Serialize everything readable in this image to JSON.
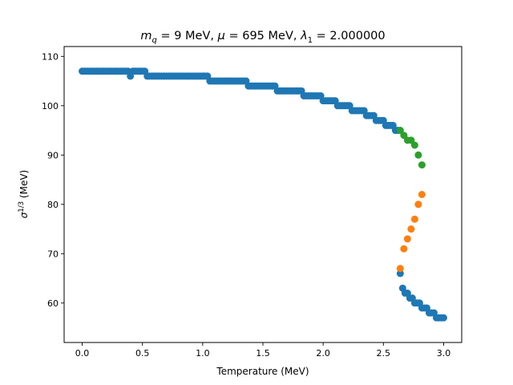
{
  "chart_data": {
    "type": "scatter",
    "title_parts": {
      "mq_symbol": "m",
      "mq_sub": "q",
      "mq_rest": " = 9 MeV, ",
      "mu_symbol": "μ",
      "mu_rest": " = 695 MeV, ",
      "lambda_symbol": "λ",
      "lambda_sub": "1",
      "lambda_rest": " =  2.000000"
    },
    "xlabel": "Temperature (MeV)",
    "ylabel_symbol": "σ",
    "ylabel_sup": "1/3",
    "ylabel_rest": " (MeV)",
    "xlim": [
      -0.15,
      3.15
    ],
    "ylim": [
      52,
      112
    ],
    "xticks": [
      0.0,
      0.5,
      1.0,
      1.5,
      2.0,
      2.5,
      3.0
    ],
    "xtick_labels": [
      "0.0",
      "0.5",
      "1.0",
      "1.5",
      "2.0",
      "2.5",
      "3.0"
    ],
    "yticks": [
      60,
      70,
      80,
      90,
      100,
      110
    ],
    "ytick_labels": [
      "60",
      "70",
      "80",
      "90",
      "100",
      "110"
    ],
    "grid": false,
    "legend": "none",
    "series": [
      {
        "color": "#1f77b4",
        "points": [
          [
            0.0,
            107
          ],
          [
            0.02,
            107
          ],
          [
            0.04,
            107
          ],
          [
            0.06,
            107
          ],
          [
            0.08,
            107
          ],
          [
            0.1,
            107
          ],
          [
            0.12,
            107
          ],
          [
            0.14,
            107
          ],
          [
            0.16,
            107
          ],
          [
            0.18,
            107
          ],
          [
            0.2,
            107
          ],
          [
            0.22,
            107
          ],
          [
            0.24,
            107
          ],
          [
            0.26,
            107
          ],
          [
            0.28,
            107
          ],
          [
            0.3,
            107
          ],
          [
            0.32,
            107
          ],
          [
            0.34,
            107
          ],
          [
            0.36,
            107
          ],
          [
            0.38,
            107
          ],
          [
            0.4,
            106
          ],
          [
            0.42,
            107
          ],
          [
            0.44,
            107
          ],
          [
            0.46,
            107
          ],
          [
            0.48,
            107
          ],
          [
            0.5,
            107
          ],
          [
            0.52,
            107
          ],
          [
            0.54,
            106
          ],
          [
            0.56,
            106
          ],
          [
            0.58,
            106
          ],
          [
            0.6,
            106
          ],
          [
            0.62,
            106
          ],
          [
            0.64,
            106
          ],
          [
            0.66,
            106
          ],
          [
            0.68,
            106
          ],
          [
            0.7,
            106
          ],
          [
            0.72,
            106
          ],
          [
            0.74,
            106
          ],
          [
            0.76,
            106
          ],
          [
            0.78,
            106
          ],
          [
            0.8,
            106
          ],
          [
            0.82,
            106
          ],
          [
            0.84,
            106
          ],
          [
            0.86,
            106
          ],
          [
            0.88,
            106
          ],
          [
            0.9,
            106
          ],
          [
            0.92,
            106
          ],
          [
            0.94,
            106
          ],
          [
            0.96,
            106
          ],
          [
            0.98,
            106
          ],
          [
            1.0,
            106
          ],
          [
            1.02,
            106
          ],
          [
            1.04,
            106
          ],
          [
            1.06,
            105
          ],
          [
            1.08,
            105
          ],
          [
            1.1,
            105
          ],
          [
            1.12,
            105
          ],
          [
            1.14,
            105
          ],
          [
            1.16,
            105
          ],
          [
            1.18,
            105
          ],
          [
            1.2,
            105
          ],
          [
            1.22,
            105
          ],
          [
            1.24,
            105
          ],
          [
            1.26,
            105
          ],
          [
            1.28,
            105
          ],
          [
            1.3,
            105
          ],
          [
            1.32,
            105
          ],
          [
            1.34,
            105
          ],
          [
            1.36,
            105
          ],
          [
            1.38,
            104
          ],
          [
            1.4,
            104
          ],
          [
            1.42,
            104
          ],
          [
            1.44,
            104
          ],
          [
            1.46,
            104
          ],
          [
            1.48,
            104
          ],
          [
            1.5,
            104
          ],
          [
            1.52,
            104
          ],
          [
            1.54,
            104
          ],
          [
            1.56,
            104
          ],
          [
            1.58,
            104
          ],
          [
            1.6,
            104
          ],
          [
            1.62,
            103
          ],
          [
            1.64,
            103
          ],
          [
            1.66,
            103
          ],
          [
            1.68,
            103
          ],
          [
            1.7,
            103
          ],
          [
            1.72,
            103
          ],
          [
            1.74,
            103
          ],
          [
            1.76,
            103
          ],
          [
            1.78,
            103
          ],
          [
            1.8,
            103
          ],
          [
            1.82,
            103
          ],
          [
            1.84,
            102
          ],
          [
            1.86,
            102
          ],
          [
            1.88,
            102
          ],
          [
            1.9,
            102
          ],
          [
            1.92,
            102
          ],
          [
            1.94,
            102
          ],
          [
            1.96,
            102
          ],
          [
            1.98,
            102
          ],
          [
            2.0,
            101
          ],
          [
            2.02,
            101
          ],
          [
            2.04,
            101
          ],
          [
            2.06,
            101
          ],
          [
            2.08,
            101
          ],
          [
            2.1,
            101
          ],
          [
            2.12,
            100
          ],
          [
            2.14,
            100
          ],
          [
            2.16,
            100
          ],
          [
            2.18,
            100
          ],
          [
            2.2,
            100
          ],
          [
            2.22,
            100
          ],
          [
            2.24,
            99
          ],
          [
            2.26,
            99
          ],
          [
            2.28,
            99
          ],
          [
            2.3,
            99
          ],
          [
            2.32,
            99
          ],
          [
            2.34,
            99
          ],
          [
            2.36,
            98
          ],
          [
            2.38,
            98
          ],
          [
            2.4,
            98
          ],
          [
            2.42,
            98
          ],
          [
            2.44,
            97
          ],
          [
            2.46,
            97
          ],
          [
            2.48,
            97
          ],
          [
            2.5,
            97
          ],
          [
            2.52,
            96
          ],
          [
            2.54,
            96
          ],
          [
            2.56,
            96
          ],
          [
            2.58,
            96
          ],
          [
            2.6,
            95
          ],
          [
            2.62,
            95
          ],
          [
            2.64,
            66
          ],
          [
            2.66,
            63
          ],
          [
            2.68,
            62
          ],
          [
            2.7,
            62
          ],
          [
            2.72,
            61
          ],
          [
            2.74,
            61
          ],
          [
            2.76,
            60
          ],
          [
            2.78,
            60
          ],
          [
            2.8,
            60
          ],
          [
            2.82,
            59
          ],
          [
            2.84,
            59
          ],
          [
            2.86,
            59
          ],
          [
            2.88,
            58
          ],
          [
            2.9,
            58
          ],
          [
            2.92,
            58
          ],
          [
            2.94,
            57
          ],
          [
            2.96,
            57
          ],
          [
            2.98,
            57
          ],
          [
            3.0,
            57
          ]
        ]
      },
      {
        "color": "#ff7f0e",
        "points": [
          [
            2.64,
            67
          ],
          [
            2.67,
            71
          ],
          [
            2.7,
            73
          ],
          [
            2.73,
            75
          ],
          [
            2.76,
            77
          ],
          [
            2.79,
            80
          ],
          [
            2.82,
            82
          ]
        ]
      },
      {
        "color": "#2ca02c",
        "points": [
          [
            2.64,
            95
          ],
          [
            2.67,
            94
          ],
          [
            2.7,
            93
          ],
          [
            2.73,
            93
          ],
          [
            2.76,
            92
          ],
          [
            2.79,
            90
          ],
          [
            2.82,
            88
          ]
        ]
      }
    ]
  }
}
